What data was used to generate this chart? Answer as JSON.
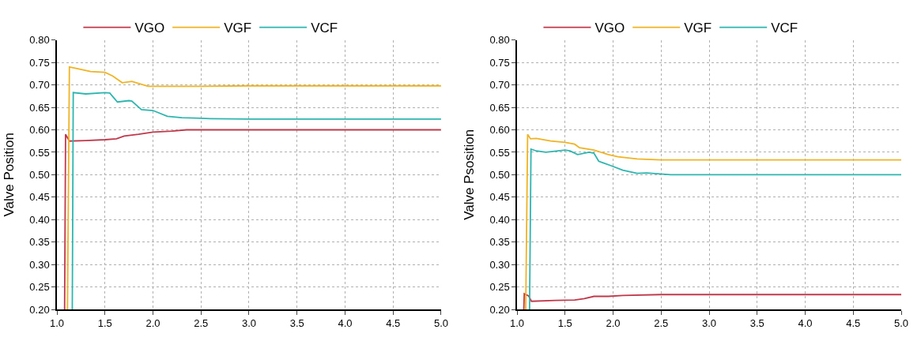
{
  "chart_data": [
    {
      "type": "line",
      "ylabel": "Valve Position",
      "xlim": [
        1.0,
        5.0
      ],
      "ylim": [
        0.2,
        0.8
      ],
      "xticks": [
        {
          "value": 1.0,
          "label": "1.0"
        },
        {
          "value": 1.5,
          "label": "1.5"
        },
        {
          "value": 2.0,
          "label": "2.0"
        },
        {
          "value": 2.5,
          "label": "2.5"
        },
        {
          "value": 3.0,
          "label": "3.0"
        },
        {
          "value": 3.5,
          "label": "3.5"
        },
        {
          "value": 4.0,
          "label": "4.0"
        },
        {
          "value": 4.5,
          "label": "4.5"
        },
        {
          "value": 5.0,
          "label": "5.0"
        }
      ],
      "yticks": [
        {
          "value": 0.2,
          "label": "0.20"
        },
        {
          "value": 0.25,
          "label": "0.25"
        },
        {
          "value": 0.3,
          "label": "0.30"
        },
        {
          "value": 0.35,
          "label": "0.35"
        },
        {
          "value": 0.4,
          "label": "0.40"
        },
        {
          "value": 0.45,
          "label": "0.45"
        },
        {
          "value": 0.5,
          "label": "0.50"
        },
        {
          "value": 0.55,
          "label": "0.55"
        },
        {
          "value": 0.6,
          "label": "0.60"
        },
        {
          "value": 0.65,
          "label": "0.65"
        },
        {
          "value": 0.7,
          "label": "0.70"
        },
        {
          "value": 0.75,
          "label": "0.75"
        },
        {
          "value": 0.8,
          "label": "0.80"
        }
      ],
      "grid": true,
      "legend": "top",
      "line_style": "solid",
      "marker": "none",
      "series": [
        {
          "name": "VGO",
          "color": "#c0394b",
          "x": [
            1.08,
            1.09,
            1.13,
            1.3,
            1.5,
            1.62,
            1.7,
            1.85,
            2.0,
            2.2,
            2.35,
            3.0,
            4.0,
            5.0
          ],
          "values": [
            0.2,
            0.59,
            0.575,
            0.576,
            0.578,
            0.58,
            0.586,
            0.59,
            0.595,
            0.597,
            0.6,
            0.6,
            0.6,
            0.6
          ]
        },
        {
          "name": "VGF",
          "color": "#f0b323",
          "x": [
            1.11,
            1.13,
            1.2,
            1.35,
            1.5,
            1.58,
            1.68,
            1.78,
            1.95,
            2.5,
            3.0,
            4.0,
            5.0
          ],
          "values": [
            0.2,
            0.74,
            0.737,
            0.73,
            0.728,
            0.72,
            0.705,
            0.708,
            0.697,
            0.697,
            0.698,
            0.698,
            0.698
          ]
        },
        {
          "name": "VCF",
          "color": "#2db5b0",
          "x": [
            1.16,
            1.17,
            1.3,
            1.5,
            1.55,
            1.63,
            1.75,
            1.78,
            1.88,
            2.0,
            2.15,
            2.3,
            2.6,
            3.0,
            4.0,
            5.0
          ],
          "values": [
            0.2,
            0.683,
            0.68,
            0.683,
            0.682,
            0.662,
            0.665,
            0.664,
            0.645,
            0.643,
            0.63,
            0.627,
            0.625,
            0.624,
            0.624,
            0.624
          ]
        }
      ]
    },
    {
      "type": "line",
      "ylabel": "Valve Psosition",
      "xlim": [
        1.0,
        5.0
      ],
      "ylim": [
        0.2,
        0.8
      ],
      "xticks": [
        {
          "value": 1.0,
          "label": "1.0"
        },
        {
          "value": 1.5,
          "label": "1.5"
        },
        {
          "value": 2.0,
          "label": "2.0"
        },
        {
          "value": 2.5,
          "label": "2.5"
        },
        {
          "value": 3.0,
          "label": "3.0"
        },
        {
          "value": 3.5,
          "label": "3.5"
        },
        {
          "value": 4.0,
          "label": "4.0"
        },
        {
          "value": 4.5,
          "label": "4.5"
        },
        {
          "value": 5.0,
          "label": "5.0"
        }
      ],
      "yticks": [
        {
          "value": 0.2,
          "label": "0.20"
        },
        {
          "value": 0.25,
          "label": "0.25"
        },
        {
          "value": 0.3,
          "label": "0.30"
        },
        {
          "value": 0.35,
          "label": "0.35"
        },
        {
          "value": 0.4,
          "label": "0.40"
        },
        {
          "value": 0.45,
          "label": "0.45"
        },
        {
          "value": 0.5,
          "label": "0.50"
        },
        {
          "value": 0.55,
          "label": "0.55"
        },
        {
          "value": 0.6,
          "label": "0.60"
        },
        {
          "value": 0.65,
          "label": "0.65"
        },
        {
          "value": 0.7,
          "label": "0.70"
        },
        {
          "value": 0.75,
          "label": "0.75"
        },
        {
          "value": 0.8,
          "label": "0.80"
        }
      ],
      "grid": true,
      "legend": "top",
      "line_style": "solid",
      "marker": "none",
      "series": [
        {
          "name": "VGO",
          "color": "#c0394b",
          "x": [
            1.07,
            1.075,
            1.12,
            1.15,
            1.4,
            1.6,
            1.7,
            1.8,
            1.95,
            2.1,
            2.5,
            3.0,
            4.0,
            5.0
          ],
          "values": [
            0.2,
            0.235,
            0.23,
            0.218,
            0.22,
            0.221,
            0.224,
            0.229,
            0.229,
            0.231,
            0.233,
            0.233,
            0.233,
            0.233
          ]
        },
        {
          "name": "VGF",
          "color": "#f0b323",
          "x": [
            1.09,
            1.11,
            1.14,
            1.2,
            1.35,
            1.5,
            1.6,
            1.65,
            1.8,
            1.95,
            2.05,
            2.25,
            2.5,
            3.0,
            4.0,
            5.0
          ],
          "values": [
            0.2,
            0.59,
            0.58,
            0.581,
            0.575,
            0.572,
            0.568,
            0.56,
            0.555,
            0.545,
            0.54,
            0.535,
            0.533,
            0.533,
            0.533,
            0.533
          ]
        },
        {
          "name": "VCF",
          "color": "#2db5b0",
          "x": [
            1.13,
            1.145,
            1.2,
            1.3,
            1.5,
            1.55,
            1.63,
            1.75,
            1.8,
            1.85,
            1.98,
            2.1,
            2.25,
            2.35,
            2.6,
            3.0,
            4.0,
            5.0
          ],
          "values": [
            0.2,
            0.557,
            0.553,
            0.55,
            0.555,
            0.553,
            0.545,
            0.55,
            0.548,
            0.53,
            0.52,
            0.51,
            0.503,
            0.504,
            0.5,
            0.5,
            0.5,
            0.5
          ]
        }
      ]
    }
  ]
}
